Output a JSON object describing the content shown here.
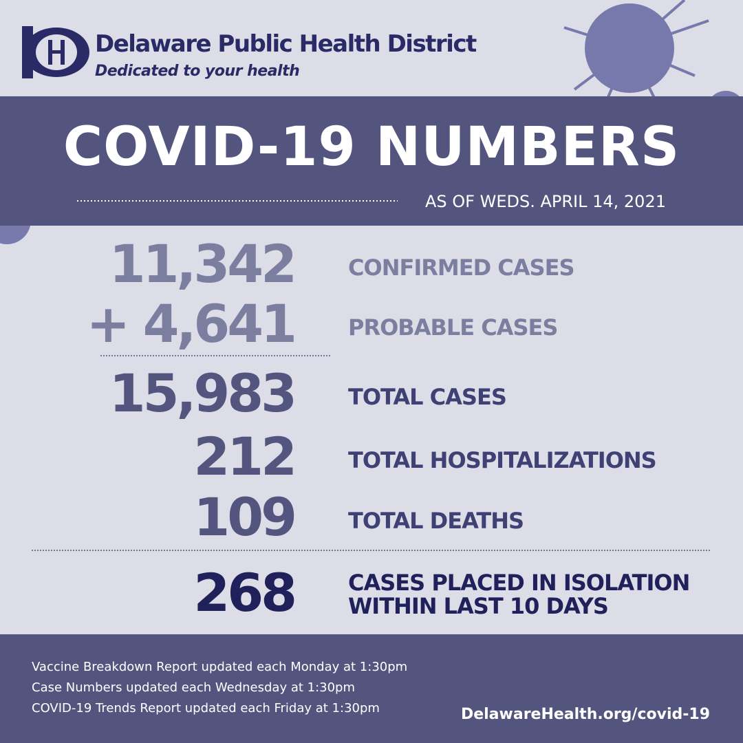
{
  "header": {
    "organization": "Delaware Public Health District",
    "tagline": "Dedicated to your health"
  },
  "banner": {
    "title": "COVID-19 NUMBERS",
    "date": "AS OF WEDS. APRIL 14, 2021"
  },
  "stats": [
    {
      "number": "11,342",
      "label": "CONFIRMED CASES"
    },
    {
      "number": "+ 4,641",
      "label": "PROBABLE CASES"
    },
    {
      "number": "15,983",
      "label": "TOTAL CASES"
    },
    {
      "number": "212",
      "label": "TOTAL HOSPITALIZATIONS"
    },
    {
      "number": "109",
      "label": "TOTAL DEATHS"
    }
  ],
  "isolation": {
    "number": "268",
    "label_lines": [
      "CASES PLACED IN ISOLATION",
      "WITHIN LAST 10 DAYS"
    ]
  },
  "footer": {
    "notes": [
      "Vaccine Breakdown Report updated each Monday at 1:30pm",
      "Case Numbers updated each Wednesday at 1:30pm",
      "COVID-19 Trends Report updated each Friday at 1:30pm"
    ],
    "url": "DelawareHealth.org/covid-19"
  }
}
